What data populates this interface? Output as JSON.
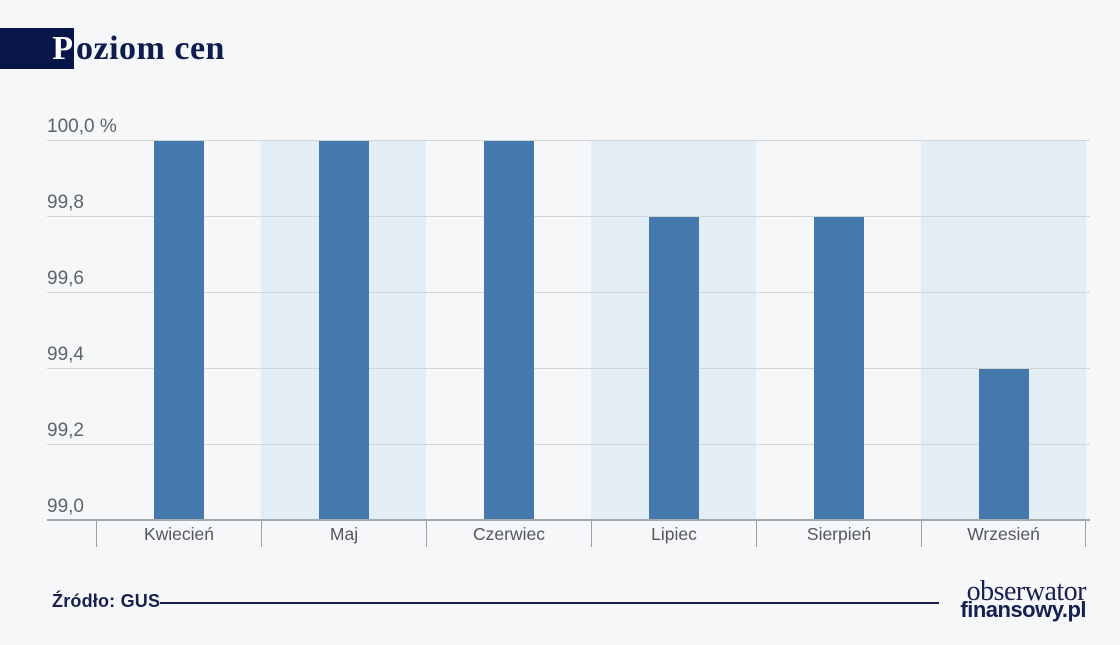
{
  "title": {
    "first_letter": "P",
    "rest": "oziom cen",
    "full": "Poziom cen"
  },
  "chart_data": {
    "type": "bar",
    "title": "Poziom cen",
    "categories": [
      "Kwiecień",
      "Maj",
      "Czerwiec",
      "Lipiec",
      "Sierpień",
      "Wrzesień"
    ],
    "values": [
      100.0,
      100.0,
      100.0,
      99.8,
      99.8,
      99.4
    ],
    "series_unit": "%",
    "xlabel": "",
    "ylabel": "",
    "ylim": [
      99.0,
      100.0
    ],
    "ytick_step": 0.2,
    "ytick_labels_top_to_bottom": [
      "100,0 %",
      "99,8",
      "99,6",
      "99,4",
      "99,2",
      "99,0"
    ],
    "grid": "horizontal",
    "legend": "none",
    "striped_column_indexes": [
      1,
      3,
      5
    ]
  },
  "footer": {
    "source_label": "Źródło: GUS",
    "logo_line1": "obserwator",
    "logo_line2": "finansowy.pl"
  },
  "colors": {
    "background": "#f6f7f9",
    "navy_box": "#071549",
    "title_text": "#0e1c4e",
    "bar": "#4579ad",
    "column_band": "#e3edf6",
    "gridline": "#d2d5d8",
    "axis_line": "#a4a9ae",
    "ytick_text": "#5f6468",
    "xlabel_text": "#54585d",
    "separator": "#9aa0a6",
    "footer_navy": "#15204f"
  }
}
